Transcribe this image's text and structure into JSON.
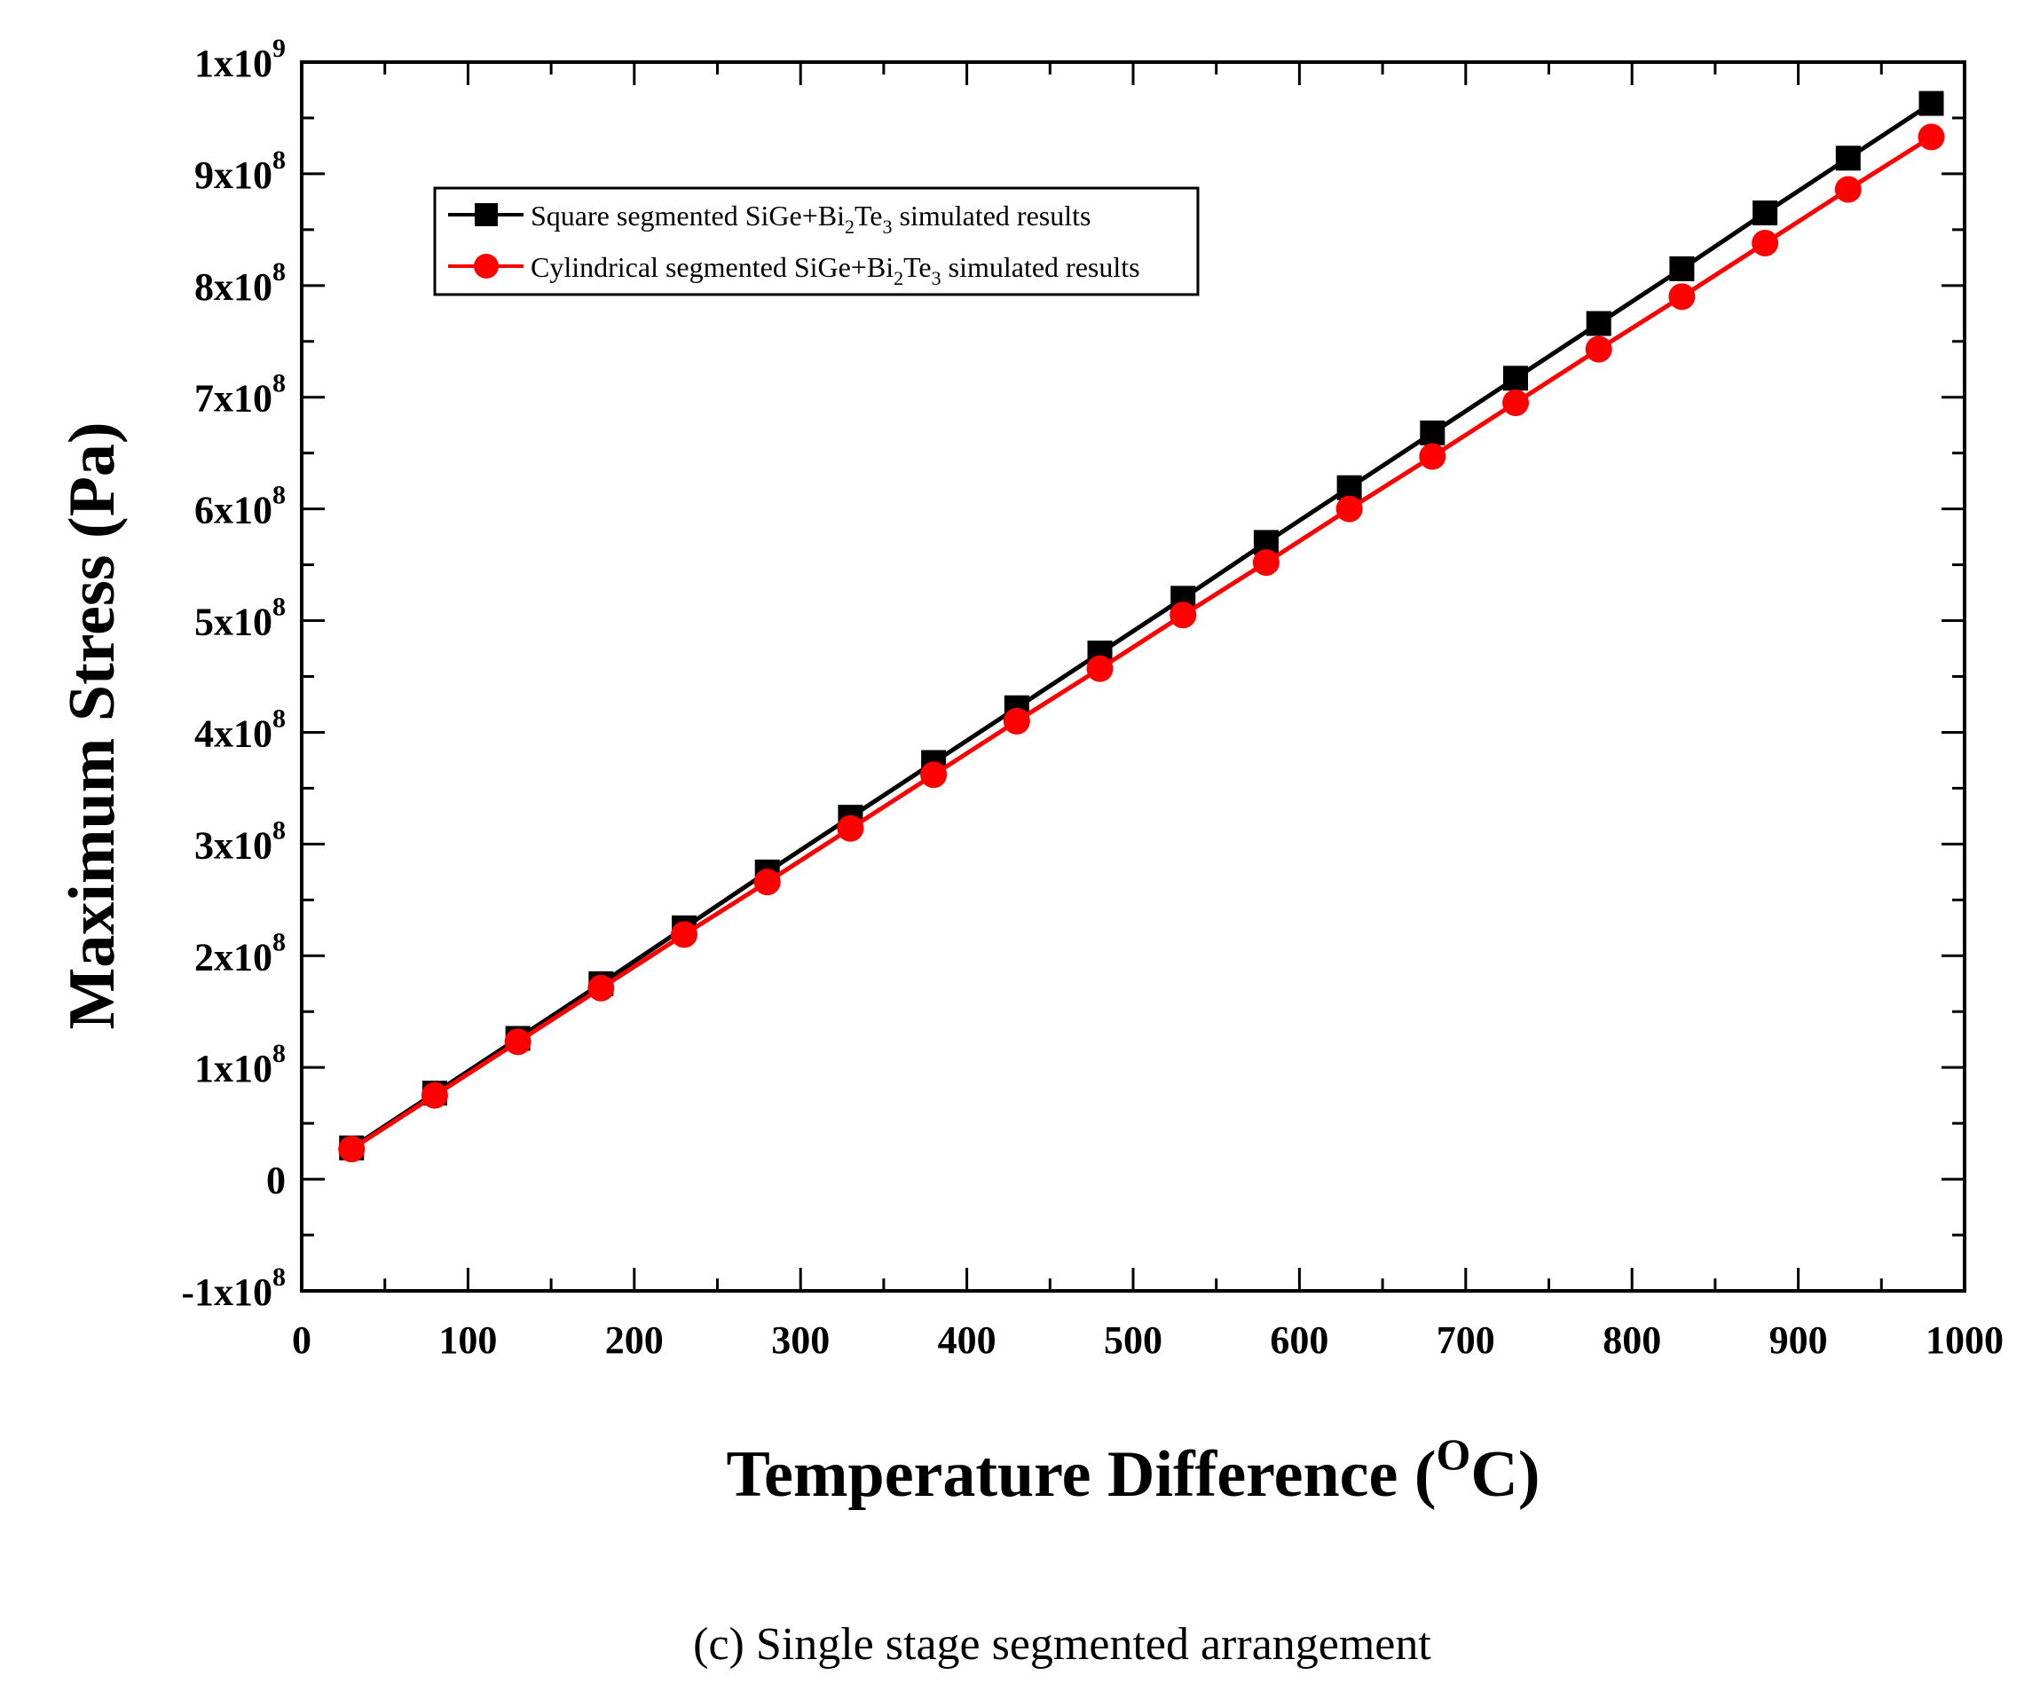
{
  "chart_data": {
    "type": "line",
    "xlabel": "Temperature Difference (",
    "xlabel_sup": "O",
    "xlabel_end": "C)",
    "ylabel": "Maximum Stress (Pa)",
    "xlim": [
      0,
      1000
    ],
    "ylim": [
      -100000000,
      1000000000
    ],
    "x_ticks": [
      {
        "value": 0,
        "label": "0"
      },
      {
        "value": 100,
        "label": "100"
      },
      {
        "value": 200,
        "label": "200"
      },
      {
        "value": 300,
        "label": "300"
      },
      {
        "value": 400,
        "label": "400"
      },
      {
        "value": 500,
        "label": "500"
      },
      {
        "value": 600,
        "label": "600"
      },
      {
        "value": 700,
        "label": "700"
      },
      {
        "value": 800,
        "label": "800"
      },
      {
        "value": 900,
        "label": "900"
      },
      {
        "value": 1000,
        "label": "1000"
      }
    ],
    "y_ticks": [
      {
        "value": 1000000000,
        "label": "1x10",
        "exp": "9"
      },
      {
        "value": 900000000,
        "label": "9x10",
        "exp": "8"
      },
      {
        "value": 800000000,
        "label": "8x10",
        "exp": "8"
      },
      {
        "value": 700000000,
        "label": "7x10",
        "exp": "8"
      },
      {
        "value": 600000000,
        "label": "6x10",
        "exp": "8"
      },
      {
        "value": 500000000,
        "label": "5x10",
        "exp": "8"
      },
      {
        "value": 400000000,
        "label": "4x10",
        "exp": "8"
      },
      {
        "value": 300000000,
        "label": "3x10",
        "exp": "8"
      },
      {
        "value": 200000000,
        "label": "2x10",
        "exp": "8"
      },
      {
        "value": 100000000,
        "label": "1x10",
        "exp": "8"
      },
      {
        "value": 0,
        "label": "0",
        "exp": ""
      },
      {
        "value": -100000000,
        "label": "-1x10",
        "exp": "8"
      }
    ],
    "x": [
      30,
      80,
      130,
      180,
      230,
      280,
      330,
      380,
      430,
      480,
      530,
      580,
      630,
      680,
      730,
      780,
      830,
      880,
      930,
      980
    ],
    "series": [
      {
        "name": "Square segmented SiGe+Bi2Te3 simulated results",
        "legend_parts": [
          "Square segmented SiGe+Bi",
          "2",
          "Te",
          "3",
          " simulated results"
        ],
        "color": "#000000",
        "marker": "square",
        "values": [
          28000000,
          77000000,
          126000000,
          175000000,
          225000000,
          275000000,
          324000000,
          373000000,
          422000000,
          471000000,
          520000000,
          570000000,
          619000000,
          668000000,
          717000000,
          766000000,
          815000000,
          865000000,
          914000000,
          963000000
        ]
      },
      {
        "name": "Cylindrical segmented SiGe+Bi2Te3 simulated results",
        "legend_parts": [
          "Cylindrical segmented SiGe+Bi",
          "2",
          "Te",
          "3",
          " simulated results"
        ],
        "color": "#ff0000",
        "marker": "circle",
        "values": [
          27000000,
          75000000,
          123000000,
          171000000,
          219000000,
          266000000,
          314000000,
          362000000,
          410000000,
          457000000,
          505000000,
          552000000,
          600000000,
          647000000,
          695000000,
          743000000,
          790000000,
          838000000,
          886000000,
          933000000
        ]
      }
    ],
    "legend_position": "upper-left",
    "caption": "(c) Single stage segmented arrangement"
  }
}
